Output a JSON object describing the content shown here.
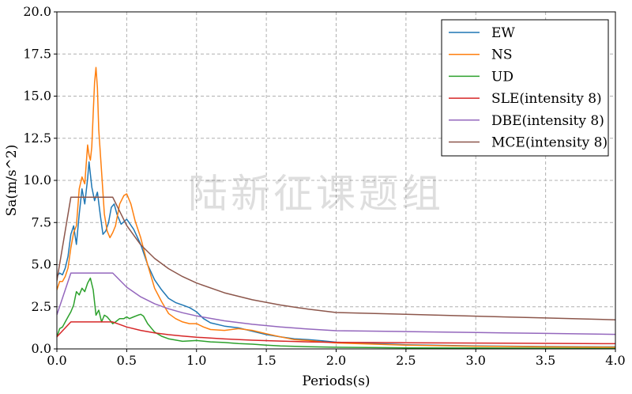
{
  "watermark": "陆新征课题组",
  "chart_data": {
    "type": "line",
    "xlabel": "Periods(s)",
    "ylabel": "Sa(m/s^2)",
    "xlim": [
      0,
      4
    ],
    "ylim": [
      0,
      20
    ],
    "xticks": [
      "0.0",
      "0.5",
      "1.0",
      "1.5",
      "2.0",
      "2.5",
      "3.0",
      "3.5",
      "4.0"
    ],
    "yticks": [
      "0.0",
      "2.5",
      "5.0",
      "7.5",
      "10.0",
      "12.5",
      "15.0",
      "17.5",
      "20.0"
    ],
    "grid": true,
    "legend_position": "top-right",
    "series": [
      {
        "name": "EW",
        "color": "#1f77b4",
        "points": [
          [
            0.0,
            4.3
          ],
          [
            0.02,
            4.5
          ],
          [
            0.04,
            4.4
          ],
          [
            0.06,
            4.8
          ],
          [
            0.08,
            5.5
          ],
          [
            0.1,
            6.8
          ],
          [
            0.12,
            7.3
          ],
          [
            0.14,
            6.2
          ],
          [
            0.16,
            8.0
          ],
          [
            0.18,
            9.5
          ],
          [
            0.2,
            8.6
          ],
          [
            0.22,
            10.1
          ],
          [
            0.23,
            11.1
          ],
          [
            0.25,
            9.6
          ],
          [
            0.27,
            8.8
          ],
          [
            0.29,
            9.3
          ],
          [
            0.31,
            8.0
          ],
          [
            0.33,
            6.8
          ],
          [
            0.35,
            7.0
          ],
          [
            0.37,
            7.5
          ],
          [
            0.39,
            8.4
          ],
          [
            0.41,
            8.6
          ],
          [
            0.43,
            8.0
          ],
          [
            0.46,
            7.4
          ],
          [
            0.5,
            7.7
          ],
          [
            0.55,
            7.1
          ],
          [
            0.6,
            6.2
          ],
          [
            0.65,
            5.0
          ],
          [
            0.7,
            4.1
          ],
          [
            0.75,
            3.5
          ],
          [
            0.8,
            3.0
          ],
          [
            0.85,
            2.75
          ],
          [
            0.9,
            2.6
          ],
          [
            0.95,
            2.45
          ],
          [
            1.0,
            2.2
          ],
          [
            1.05,
            1.8
          ],
          [
            1.1,
            1.55
          ],
          [
            1.2,
            1.35
          ],
          [
            1.3,
            1.25
          ],
          [
            1.4,
            1.05
          ],
          [
            1.5,
            0.85
          ],
          [
            1.6,
            0.72
          ],
          [
            1.7,
            0.6
          ],
          [
            1.8,
            0.55
          ],
          [
            1.9,
            0.48
          ],
          [
            2.0,
            0.4
          ],
          [
            2.5,
            0.25
          ],
          [
            3.0,
            0.18
          ],
          [
            3.5,
            0.14
          ],
          [
            4.0,
            0.12
          ]
        ]
      },
      {
        "name": "NS",
        "color": "#ff7f0e",
        "points": [
          [
            0.0,
            3.5
          ],
          [
            0.02,
            4.0
          ],
          [
            0.04,
            4.0
          ],
          [
            0.06,
            4.3
          ],
          [
            0.08,
            4.8
          ],
          [
            0.1,
            6.0
          ],
          [
            0.12,
            6.9
          ],
          [
            0.14,
            7.3
          ],
          [
            0.16,
            9.5
          ],
          [
            0.18,
            10.2
          ],
          [
            0.2,
            9.8
          ],
          [
            0.22,
            12.1
          ],
          [
            0.23,
            11.5
          ],
          [
            0.24,
            11.2
          ],
          [
            0.25,
            12.0
          ],
          [
            0.26,
            14.0
          ],
          [
            0.27,
            15.8
          ],
          [
            0.28,
            16.7
          ],
          [
            0.29,
            15.5
          ],
          [
            0.3,
            13.0
          ],
          [
            0.32,
            10.5
          ],
          [
            0.34,
            8.0
          ],
          [
            0.36,
            7.0
          ],
          [
            0.38,
            6.6
          ],
          [
            0.4,
            6.9
          ],
          [
            0.42,
            7.3
          ],
          [
            0.45,
            8.6
          ],
          [
            0.48,
            9.1
          ],
          [
            0.5,
            9.2
          ],
          [
            0.53,
            8.6
          ],
          [
            0.56,
            7.6
          ],
          [
            0.6,
            6.6
          ],
          [
            0.65,
            5.0
          ],
          [
            0.7,
            3.6
          ],
          [
            0.75,
            2.8
          ],
          [
            0.8,
            2.1
          ],
          [
            0.85,
            1.8
          ],
          [
            0.9,
            1.6
          ],
          [
            0.95,
            1.5
          ],
          [
            1.0,
            1.5
          ],
          [
            1.05,
            1.3
          ],
          [
            1.1,
            1.15
          ],
          [
            1.2,
            1.1
          ],
          [
            1.3,
            1.2
          ],
          [
            1.4,
            1.1
          ],
          [
            1.5,
            0.9
          ],
          [
            1.6,
            0.72
          ],
          [
            1.7,
            0.55
          ],
          [
            1.8,
            0.5
          ],
          [
            1.9,
            0.42
          ],
          [
            2.0,
            0.35
          ],
          [
            2.5,
            0.22
          ],
          [
            3.0,
            0.16
          ],
          [
            3.5,
            0.12
          ],
          [
            4.0,
            0.1
          ]
        ]
      },
      {
        "name": "UD",
        "color": "#2ca02c",
        "points": [
          [
            0.0,
            0.7
          ],
          [
            0.02,
            1.2
          ],
          [
            0.04,
            1.3
          ],
          [
            0.06,
            1.6
          ],
          [
            0.08,
            1.9
          ],
          [
            0.1,
            2.2
          ],
          [
            0.12,
            2.6
          ],
          [
            0.14,
            3.4
          ],
          [
            0.16,
            3.2
          ],
          [
            0.18,
            3.6
          ],
          [
            0.2,
            3.4
          ],
          [
            0.22,
            3.9
          ],
          [
            0.24,
            4.2
          ],
          [
            0.26,
            3.5
          ],
          [
            0.28,
            2.0
          ],
          [
            0.3,
            2.3
          ],
          [
            0.32,
            1.6
          ],
          [
            0.34,
            2.0
          ],
          [
            0.36,
            1.9
          ],
          [
            0.38,
            1.7
          ],
          [
            0.4,
            1.5
          ],
          [
            0.42,
            1.6
          ],
          [
            0.45,
            1.8
          ],
          [
            0.48,
            1.8
          ],
          [
            0.5,
            1.9
          ],
          [
            0.52,
            1.8
          ],
          [
            0.55,
            1.9
          ],
          [
            0.58,
            2.0
          ],
          [
            0.6,
            2.05
          ],
          [
            0.62,
            1.95
          ],
          [
            0.65,
            1.5
          ],
          [
            0.7,
            1.0
          ],
          [
            0.75,
            0.75
          ],
          [
            0.8,
            0.6
          ],
          [
            0.9,
            0.45
          ],
          [
            1.0,
            0.5
          ],
          [
            1.1,
            0.42
          ],
          [
            1.2,
            0.38
          ],
          [
            1.3,
            0.32
          ],
          [
            1.4,
            0.28
          ],
          [
            1.5,
            0.22
          ],
          [
            1.6,
            0.18
          ],
          [
            1.8,
            0.13
          ],
          [
            2.0,
            0.1
          ],
          [
            2.5,
            0.06
          ],
          [
            3.0,
            0.05
          ],
          [
            3.5,
            0.04
          ],
          [
            4.0,
            0.03
          ]
        ]
      },
      {
        "name": "SLE(intensity 8)",
        "color": "#d62728",
        "points": [
          [
            0.0,
            0.72
          ],
          [
            0.1,
            1.6
          ],
          [
            0.4,
            1.6
          ],
          [
            0.5,
            1.301
          ],
          [
            0.6,
            1.099
          ],
          [
            0.7,
            0.955
          ],
          [
            0.8,
            0.847
          ],
          [
            0.9,
            0.763
          ],
          [
            1.0,
            0.695
          ],
          [
            1.2,
            0.592
          ],
          [
            1.4,
            0.518
          ],
          [
            1.6,
            0.463
          ],
          [
            1.8,
            0.419
          ],
          [
            2.0,
            0.384
          ],
          [
            2.5,
            0.365
          ],
          [
            3.0,
            0.346
          ],
          [
            3.5,
            0.327
          ],
          [
            4.0,
            0.308
          ]
        ]
      },
      {
        "name": "DBE(intensity 8)",
        "color": "#9467bd",
        "points": [
          [
            0.0,
            2.025
          ],
          [
            0.1,
            4.5
          ],
          [
            0.4,
            4.5
          ],
          [
            0.5,
            3.66
          ],
          [
            0.6,
            3.09
          ],
          [
            0.7,
            2.68
          ],
          [
            0.8,
            2.38
          ],
          [
            0.9,
            2.146
          ],
          [
            1.0,
            1.956
          ],
          [
            1.2,
            1.665
          ],
          [
            1.4,
            1.458
          ],
          [
            1.6,
            1.302
          ],
          [
            1.8,
            1.179
          ],
          [
            2.0,
            1.08
          ],
          [
            2.5,
            1.026
          ],
          [
            3.0,
            0.972
          ],
          [
            3.5,
            0.918
          ],
          [
            4.0,
            0.864
          ]
        ]
      },
      {
        "name": "MCE(intensity 8)",
        "color": "#8c564b",
        "points": [
          [
            0.0,
            4.05
          ],
          [
            0.1,
            9.0
          ],
          [
            0.4,
            9.0
          ],
          [
            0.5,
            7.32
          ],
          [
            0.6,
            6.18
          ],
          [
            0.7,
            5.37
          ],
          [
            0.8,
            4.76
          ],
          [
            0.9,
            4.29
          ],
          [
            1.0,
            3.91
          ],
          [
            1.2,
            3.33
          ],
          [
            1.4,
            2.916
          ],
          [
            1.6,
            2.604
          ],
          [
            1.8,
            2.358
          ],
          [
            2.0,
            2.16
          ],
          [
            2.5,
            2.052
          ],
          [
            3.0,
            1.944
          ],
          [
            3.5,
            1.836
          ],
          [
            4.0,
            1.728
          ]
        ]
      }
    ]
  }
}
